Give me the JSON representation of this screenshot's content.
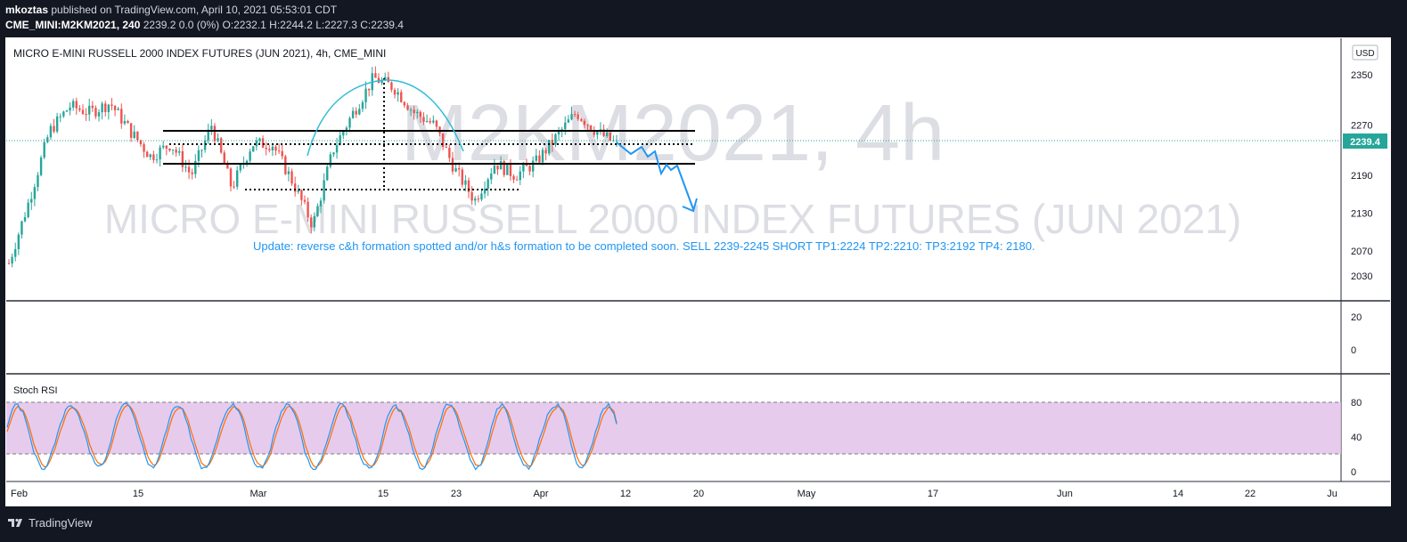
{
  "header": {
    "publisher": "mkoztas",
    "published_text": "published on TradingView.com, April 10, 2021 05:53:01 CDT",
    "symbol": "CME_MINI:M2KM2021, 240",
    "quote": "2239.2 0.0 (0%) O:2232.1 H:2244.2 L:2227.3 C:2239.4"
  },
  "chart": {
    "title": "MICRO E-MINI RUSSELL 2000 INDEX FUTURES (JUN 2021), 4h, CME_MINI",
    "watermark_symbol": "M2KM2021, 4h",
    "watermark_name": "MICRO E-MINI RUSSELL 2000 INDEX FUTURES (JUN 2021)",
    "currency": "USD",
    "last_price_label": "2239.4",
    "annotation": "Update: reverse c&h formation spotted and/or h&s formation to be completed soon. SELL 2239-2245 SHORT TP1:2224 TP2:2210: TP3:2192 TP4: 2180.",
    "indicator_label": "Stoch RSI",
    "footer_brand": "TradingView"
  },
  "colors": {
    "up": "#26a69a",
    "down": "#ef5350",
    "annotation": "#2196f3",
    "price_tag": "#26a69a",
    "stoch_k": "#2196f3",
    "stoch_d": "#ff6d00",
    "stoch_band": "#e1bee7"
  },
  "chart_data": {
    "type": "candlestick",
    "interval": "4h",
    "ylim": [
      2000,
      2380
    ],
    "y_ticks": [
      2030,
      2070,
      2130,
      2190,
      2270,
      2350
    ],
    "x_ticks": [
      "Feb",
      "15",
      "Mar",
      "15",
      "23",
      "Apr",
      "12",
      "20",
      "May",
      "17",
      "Jun",
      "14",
      "22",
      "Ju"
    ],
    "last_price": 2239.4,
    "ohlc_daily_approx": [
      {
        "date": "Feb 1",
        "close": 2050
      },
      {
        "date": "Feb 4",
        "close": 2150
      },
      {
        "date": "Feb 8",
        "close": 2260
      },
      {
        "date": "Feb 10",
        "close": 2300
      },
      {
        "date": "Feb 12",
        "close": 2290
      },
      {
        "date": "Feb 15",
        "close": 2305
      },
      {
        "date": "Feb 17",
        "close": 2260
      },
      {
        "date": "Feb 19",
        "close": 2220
      },
      {
        "date": "Feb 22",
        "close": 2240
      },
      {
        "date": "Feb 24",
        "close": 2190
      },
      {
        "date": "Feb 25",
        "close": 2270
      },
      {
        "date": "Feb 26",
        "close": 2170
      },
      {
        "date": "Mar 1",
        "close": 2240
      },
      {
        "date": "Mar 3",
        "close": 2240
      },
      {
        "date": "Mar 5",
        "close": 2180
      },
      {
        "date": "Mar 8",
        "close": 2110
      },
      {
        "date": "Mar 9",
        "close": 2230
      },
      {
        "date": "Mar 11",
        "close": 2290
      },
      {
        "date": "Mar 15",
        "close": 2345
      },
      {
        "date": "Mar 17",
        "close": 2330
      },
      {
        "date": "Mar 19",
        "close": 2290
      },
      {
        "date": "Mar 22",
        "close": 2270
      },
      {
        "date": "Mar 23",
        "close": 2200
      },
      {
        "date": "Mar 25",
        "close": 2150
      },
      {
        "date": "Mar 26",
        "close": 2210
      },
      {
        "date": "Mar 29",
        "close": 2190
      },
      {
        "date": "Mar 31",
        "close": 2210
      },
      {
        "date": "Apr 1",
        "close": 2250
      },
      {
        "date": "Apr 5",
        "close": 2290
      },
      {
        "date": "Apr 7",
        "close": 2260
      },
      {
        "date": "Apr 9",
        "close": 2239.4
      }
    ],
    "horizontal_levels": [
      2255,
      2200,
      2160
    ],
    "dotted_levels": [
      2240
    ],
    "stoch_rsi": {
      "ylim": [
        0,
        100
      ],
      "y_ticks": [
        0,
        40,
        80
      ],
      "upper_band": 80,
      "lower_band": 20,
      "k_last": 68,
      "d_last": 70
    },
    "middle_pane_ticks": [
      0,
      20
    ]
  }
}
